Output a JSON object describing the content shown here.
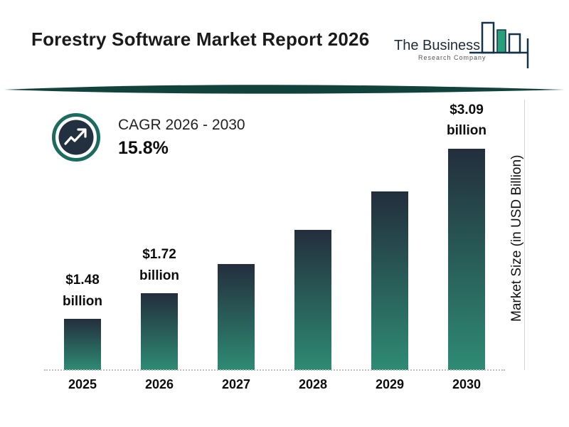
{
  "header": {
    "title": "Forestry Software Market Report 2026",
    "logo": {
      "name_line": "The Business",
      "sub_line": "Research Company"
    }
  },
  "cagr": {
    "label": "CAGR 2026 - 2030",
    "value": "15.8%"
  },
  "axis": {
    "y_label": "Market Size (in USD Billion)"
  },
  "colors": {
    "bar_top": "#232e3c",
    "bar_bottom": "#2e8b74",
    "divider": "#12423c",
    "ring": "#1d6b60",
    "icon_bg": "#22303f",
    "logo_green": "#29a07b",
    "logo_outline": "#16324a"
  },
  "chart_data": {
    "type": "bar",
    "title": "Forestry Software Market Report 2026",
    "categories": [
      "2025",
      "2026",
      "2027",
      "2028",
      "2029",
      "2030"
    ],
    "values": [
      1.48,
      1.72,
      1.99,
      2.31,
      2.67,
      3.09
    ],
    "value_labels": [
      "$1.48 billion",
      "$1.72 billion",
      null,
      null,
      null,
      "$3.09 billion"
    ],
    "xlabel": "",
    "ylabel": "Market Size (in USD Billion)",
    "legend": false,
    "grid": false,
    "cagr_label": "CAGR 2026 - 2030",
    "cagr_value_percent": 15.8
  }
}
